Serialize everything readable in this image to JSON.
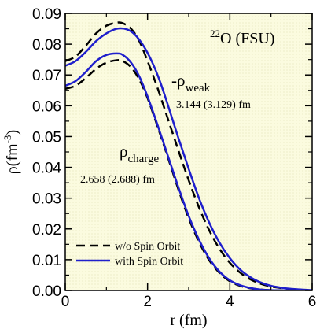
{
  "chart_data": {
    "type": "line",
    "xlabel": "r (fm)",
    "ylabel_main": "ρ(fm",
    "ylabel_sup": "-3",
    "ylabel_close": ")",
    "xlim": [
      0,
      6
    ],
    "ylim": [
      0,
      0.09
    ],
    "x_ticks": [
      "0",
      "2",
      "4",
      "6"
    ],
    "y_ticks": [
      "0.00",
      "0.01",
      "0.02",
      "0.03",
      "0.04",
      "0.05",
      "0.06",
      "0.07",
      "0.08",
      "0.09"
    ],
    "nucleus_sup": "22",
    "nucleus_main": "O (FSU)",
    "annotations": {
      "weak_label_main": "-ρ",
      "weak_label_sub": "weak",
      "weak_value": "3.144 (3.129) fm",
      "charge_label_main": "ρ",
      "charge_label_sub": "charge",
      "charge_value": "2.658 (2.688) fm"
    },
    "legend": [
      {
        "label": "w/o Spin Orbit",
        "style": "dashed",
        "color": "#000000"
      },
      {
        "label": "with Spin Orbit",
        "style": "solid",
        "color": "#1f1fcc"
      }
    ],
    "series": [
      {
        "name": "w/o Spin Orbit",
        "quantity": "weak",
        "style": "dashed",
        "color": "#000000",
        "x": [
          0,
          0.25,
          0.5,
          0.75,
          1.0,
          1.25,
          1.4,
          1.6,
          1.8,
          2.0,
          2.25,
          2.5,
          2.75,
          3.0,
          3.25,
          3.5,
          3.75,
          4.0,
          4.25,
          4.5,
          4.75,
          5.0,
          5.25,
          5.5,
          5.75,
          6.0
        ],
        "y": [
          0.0745,
          0.076,
          0.0795,
          0.0835,
          0.086,
          0.087,
          0.0868,
          0.085,
          0.081,
          0.0745,
          0.0655,
          0.0555,
          0.0455,
          0.0358,
          0.027,
          0.0195,
          0.0135,
          0.009,
          0.0058,
          0.0036,
          0.0022,
          0.0013,
          0.0008,
          0.0004,
          0.0002,
          0.0001
        ]
      },
      {
        "name": "with Spin Orbit",
        "quantity": "weak",
        "style": "solid",
        "color": "#1f1fcc",
        "x": [
          0,
          0.25,
          0.5,
          0.75,
          1.0,
          1.25,
          1.5,
          1.7,
          1.9,
          2.1,
          2.3,
          2.5,
          2.75,
          3.0,
          3.25,
          3.5,
          3.75,
          4.0,
          4.25,
          4.5,
          4.75,
          5.0,
          5.25,
          5.5,
          5.75,
          6.0
        ],
        "y": [
          0.073,
          0.0745,
          0.0775,
          0.081,
          0.0835,
          0.085,
          0.0848,
          0.083,
          0.0795,
          0.0745,
          0.068,
          0.06,
          0.0495,
          0.0395,
          0.03,
          0.022,
          0.0155,
          0.0105,
          0.0068,
          0.0043,
          0.0026,
          0.0015,
          0.0009,
          0.0005,
          0.0003,
          0.0001
        ]
      },
      {
        "name": "w/o Spin Orbit",
        "quantity": "charge",
        "style": "dashed",
        "color": "#000000",
        "x": [
          0,
          0.25,
          0.5,
          0.75,
          1.0,
          1.25,
          1.4,
          1.6,
          1.8,
          2.0,
          2.25,
          2.5,
          2.75,
          3.0,
          3.25,
          3.5,
          3.75,
          4.0,
          4.25,
          4.5,
          4.75,
          5.0,
          5.5,
          6.0
        ],
        "y": [
          0.0655,
          0.0665,
          0.069,
          0.072,
          0.074,
          0.0748,
          0.0745,
          0.0725,
          0.0685,
          0.0625,
          0.053,
          0.043,
          0.0328,
          0.0235,
          0.0158,
          0.0098,
          0.0057,
          0.003,
          0.0015,
          0.0007,
          0.0003,
          0.0001,
          0.0,
          0.0
        ]
      },
      {
        "name": "with Spin Orbit",
        "quantity": "charge",
        "style": "solid",
        "color": "#1f1fcc",
        "x": [
          0,
          0.25,
          0.5,
          0.75,
          1.0,
          1.25,
          1.4,
          1.6,
          1.8,
          2.0,
          2.25,
          2.5,
          2.75,
          3.0,
          3.25,
          3.5,
          3.75,
          4.0,
          4.25,
          4.5,
          4.75,
          5.0,
          5.5,
          6.0
        ],
        "y": [
          0.0665,
          0.068,
          0.071,
          0.0745,
          0.0765,
          0.077,
          0.0765,
          0.074,
          0.0695,
          0.063,
          0.0535,
          0.0435,
          0.0335,
          0.0242,
          0.0165,
          0.0104,
          0.0061,
          0.0033,
          0.0017,
          0.0008,
          0.0003,
          0.0001,
          0.0,
          0.0
        ]
      }
    ]
  }
}
